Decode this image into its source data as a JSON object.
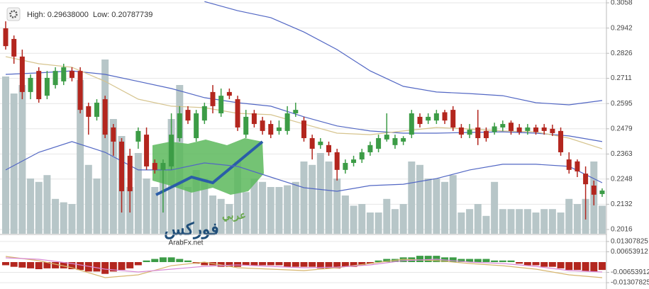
{
  "header": {
    "high": "High: 0.29638000",
    "low": "Low: 0.20787739"
  },
  "logo": {
    "top": "عربي",
    "main": "فوركس",
    "site": "ArabFx.net"
  },
  "chart_data": [
    {
      "type": "candlestick",
      "ylim": [
        0.2016,
        0.3058
      ],
      "yticks": [
        0.3058,
        0.2942,
        0.2826,
        0.2711,
        0.2595,
        0.2479,
        0.2363,
        0.2248,
        0.2132,
        0.2016
      ],
      "grid": true,
      "up_color": "#3c9c46",
      "down_color": "#b3261e",
      "volume_color": "#b7c6c8",
      "vlim": [
        0,
        100
      ],
      "open": [
        0.2941,
        0.2892,
        0.2811,
        0.2648,
        0.2745,
        0.2631,
        0.268,
        0.2697,
        0.2745,
        0.2745,
        0.2583,
        0.2534,
        0.2615,
        0.2485,
        0.242,
        0.2355,
        0.242,
        0.2452,
        0.2322,
        0.229,
        0.2306,
        0.2436,
        0.2566,
        0.2436,
        0.2517,
        0.2648,
        0.255,
        0.2648,
        0.2615,
        0.2452,
        0.255,
        0.2517,
        0.2501,
        0.2469,
        0.2469,
        0.255,
        0.2517,
        0.2436,
        0.2404,
        0.2404,
        0.2371,
        0.229,
        0.2322,
        0.2338,
        0.2371,
        0.2387,
        0.243,
        0.2404,
        0.242,
        0.2452,
        0.2534,
        0.2517,
        0.2517,
        0.2555,
        0.2566,
        0.2485,
        0.2452,
        0.2485,
        0.2469,
        0.2464,
        0.2485,
        0.2507,
        0.2485,
        0.2469,
        0.2485,
        0.2485,
        0.2479,
        0.2469,
        0.2338,
        0.2329,
        0.2273,
        0.2218,
        0.2179
      ],
      "high": [
        0.2973,
        0.2908,
        0.2843,
        0.2729,
        0.2762,
        0.2745,
        0.2762,
        0.2778,
        0.2762,
        0.2762,
        0.2599,
        0.2615,
        0.2631,
        0.2501,
        0.2436,
        0.2387,
        0.2485,
        0.2485,
        0.2338,
        0.2338,
        0.255,
        0.2583,
        0.2583,
        0.2566,
        0.2599,
        0.268,
        0.2664,
        0.2664,
        0.2631,
        0.2566,
        0.2566,
        0.2534,
        0.2517,
        0.2517,
        0.2583,
        0.2599,
        0.2534,
        0.2452,
        0.2436,
        0.242,
        0.2387,
        0.2338,
        0.2355,
        0.2387,
        0.242,
        0.2452,
        0.255,
        0.2452,
        0.2445,
        0.2566,
        0.255,
        0.255,
        0.2566,
        0.2566,
        0.2583,
        0.2501,
        0.2501,
        0.2566,
        0.2485,
        0.2507,
        0.2517,
        0.2517,
        0.2501,
        0.2501,
        0.2498,
        0.2501,
        0.2498,
        0.2485,
        0.2371,
        0.2338,
        0.2306,
        0.2241,
        0.2205
      ],
      "low": [
        0.2843,
        0.2778,
        0.2615,
        0.2615,
        0.2599,
        0.2615,
        0.2664,
        0.268,
        0.2697,
        0.255,
        0.2452,
        0.2517,
        0.2436,
        0.2355,
        0.2094,
        0.2094,
        0.2387,
        0.229,
        0.2273,
        0.2094,
        0.229,
        0.242,
        0.2501,
        0.242,
        0.2501,
        0.255,
        0.2534,
        0.2615,
        0.2469,
        0.2436,
        0.2485,
        0.2452,
        0.2436,
        0.2452,
        0.2452,
        0.2534,
        0.242,
        0.2338,
        0.2387,
        0.2355,
        0.2241,
        0.2273,
        0.2306,
        0.2322,
        0.2355,
        0.2371,
        0.242,
        0.2387,
        0.2404,
        0.2436,
        0.2485,
        0.2501,
        0.2501,
        0.2501,
        0.2469,
        0.2436,
        0.2436,
        0.2404,
        0.242,
        0.2452,
        0.2469,
        0.2452,
        0.2452,
        0.2452,
        0.2452,
        0.2452,
        0.2446,
        0.2355,
        0.2273,
        0.2257,
        0.2062,
        0.2127,
        0.2166
      ],
      "close": [
        0.2859,
        0.2811,
        0.2648,
        0.2713,
        0.2615,
        0.2713,
        0.2745,
        0.2762,
        0.2713,
        0.2566,
        0.2534,
        0.2599,
        0.2452,
        0.242,
        0.2192,
        0.2192,
        0.2469,
        0.2306,
        0.229,
        0.2322,
        0.2452,
        0.255,
        0.2517,
        0.255,
        0.2583,
        0.2583,
        0.2631,
        0.2631,
        0.2485,
        0.2534,
        0.2501,
        0.2469,
        0.2452,
        0.2485,
        0.255,
        0.2566,
        0.2436,
        0.2387,
        0.242,
        0.2371,
        0.229,
        0.2322,
        0.2338,
        0.2371,
        0.2404,
        0.2436,
        0.2452,
        0.2436,
        0.2436,
        0.255,
        0.2501,
        0.2534,
        0.255,
        0.2517,
        0.2485,
        0.2452,
        0.2475,
        0.2436,
        0.2436,
        0.249,
        0.2501,
        0.2469,
        0.2464,
        0.2485,
        0.2464,
        0.2469,
        0.2459,
        0.2371,
        0.229,
        0.2283,
        0.2224,
        0.2176,
        0.2195
      ],
      "volume": [
        90,
        80,
        85,
        30,
        28,
        32,
        18,
        16,
        15,
        88,
        38,
        30,
        100,
        65,
        55,
        25,
        45,
        30,
        25,
        35,
        65,
        85,
        25,
        35,
        30,
        20,
        18,
        15,
        40,
        22,
        30,
        28,
        25,
        25,
        26,
        28,
        40,
        38,
        45,
        40,
        30,
        20,
        14,
        15,
        10,
        10,
        18,
        12,
        15,
        40,
        38,
        30,
        30,
        28,
        32,
        10,
        12,
        15,
        8,
        28,
        12,
        12,
        12,
        12,
        10,
        12,
        12,
        10,
        18,
        15,
        18,
        40,
        14
      ],
      "series": [
        {
          "name": "upper",
          "color": "#5267c4",
          "x": [
            0,
            4,
            8,
            12,
            16,
            20,
            24,
            28,
            32,
            36,
            40,
            44,
            48,
            52,
            56,
            60,
            64,
            68,
            72
          ],
          "values": [
            null,
            null,
            null,
            null,
            null,
            null,
            0.3064,
            0.3022,
            0.299,
            0.2924,
            0.2843,
            0.2745,
            0.2674,
            0.2648,
            0.2641,
            0.2631,
            0.2599,
            0.2589,
            0.2609
          ]
        },
        {
          "name": "middle",
          "color": "#5267c4",
          "x": [
            0,
            4,
            8,
            12,
            16,
            20,
            24,
            28,
            32,
            36,
            40,
            44,
            48,
            52,
            56,
            60,
            64,
            68,
            72
          ],
          "values": [
            0.2729,
            0.2736,
            0.2745,
            0.2729,
            0.2697,
            0.2664,
            0.2622,
            0.2599,
            0.2583,
            0.2534,
            0.2492,
            0.2469,
            0.2459,
            0.2459,
            0.2462,
            0.2465,
            0.2459,
            0.2446,
            0.242
          ]
        },
        {
          "name": "lower",
          "color": "#5267c4",
          "x": [
            0,
            4,
            8,
            12,
            16,
            20,
            24,
            28,
            32,
            36,
            40,
            44,
            48,
            52,
            56,
            60,
            64,
            68,
            72
          ],
          "values": [
            0.229,
            0.2371,
            0.242,
            0.2371,
            0.229,
            0.229,
            0.2322,
            0.2306,
            0.2257,
            0.2208,
            0.2192,
            0.2218,
            0.2224,
            0.225,
            0.229,
            0.2316,
            0.2316,
            0.2306,
            0.2231
          ]
        },
        {
          "name": "ma",
          "color": "#d6c48e",
          "x": [
            0,
            4,
            8,
            12,
            16,
            20,
            24,
            28,
            32,
            36,
            40,
            44,
            48,
            52,
            56,
            60,
            64,
            68,
            72
          ],
          "values": [
            0.2811,
            0.2778,
            0.2762,
            0.2697,
            0.2615,
            0.2583,
            0.2576,
            0.255,
            0.2544,
            0.2501,
            0.2459,
            0.2452,
            0.2469,
            0.2485,
            0.2478,
            0.2469,
            0.2465,
            0.2436,
            0.2387
          ]
        }
      ]
    },
    {
      "type": "macd",
      "ylim": [
        -0.0153,
        0.0153
      ],
      "yticks": [
        0.01307825,
        0.00653912,
        -0.00653912,
        -0.01307825
      ],
      "grid": true,
      "up_color": "#3c9c46",
      "down_color": "#b3261e",
      "histogram": [
        -0.002,
        -0.003,
        -0.0035,
        -0.004,
        -0.0045,
        -0.004,
        -0.004,
        -0.004,
        -0.0045,
        -0.005,
        -0.006,
        -0.006,
        -0.0075,
        -0.006,
        -0.005,
        -0.004,
        -0.002,
        0.001,
        0.002,
        0.003,
        0.003,
        0.002,
        0.001,
        -0.001,
        -0.002,
        -0.002,
        -0.003,
        -0.003,
        -0.003,
        -0.002,
        -0.002,
        -0.002,
        -0.002,
        -0.002,
        -0.003,
        -0.003,
        -0.003,
        -0.003,
        -0.004,
        -0.004,
        -0.004,
        -0.003,
        -0.003,
        -0.002,
        -0.001,
        0.001,
        0.002,
        0.002,
        0.003,
        0.003,
        0.004,
        0.004,
        0.004,
        0.003,
        0.003,
        0.002,
        0.002,
        0.002,
        0.002,
        0.001,
        0.001,
        0.001,
        -0.001,
        -0.002,
        -0.002,
        -0.003,
        -0.003,
        -0.004,
        -0.005,
        -0.005,
        -0.006,
        -0.006,
        -0.005
      ],
      "series": [
        {
          "name": "signal",
          "color": "#d7b66e",
          "x": [
            0,
            4,
            8,
            12,
            16,
            20,
            24,
            28,
            32,
            36,
            40,
            44,
            48,
            52,
            56,
            60,
            64,
            68,
            72
          ],
          "values": [
            0.0036,
            0.0009,
            -0.0036,
            -0.0099,
            -0.0081,
            -0.0023,
            0,
            -0.0036,
            -0.0045,
            -0.0054,
            -0.0036,
            -0.0009,
            0.0018,
            0.0009,
            -0.0009,
            -0.0023,
            -0.0045,
            -0.0081,
            -0.0099
          ]
        },
        {
          "name": "macd",
          "color": "#d98ad6",
          "x": [
            0,
            4,
            8,
            12,
            16,
            20,
            24,
            28,
            32,
            36,
            40,
            44,
            48,
            52,
            56,
            60,
            64,
            68,
            72
          ],
          "values": [
            0.0027,
            0.0018,
            -0.0009,
            -0.0045,
            -0.0063,
            -0.0045,
            -0.0027,
            -0.0018,
            -0.0027,
            -0.0036,
            -0.0032,
            -0.0018,
            0.0009,
            0.0018,
            0,
            -0.0009,
            -0.0027,
            -0.0054,
            -0.0063
          ]
        }
      ]
    }
  ]
}
